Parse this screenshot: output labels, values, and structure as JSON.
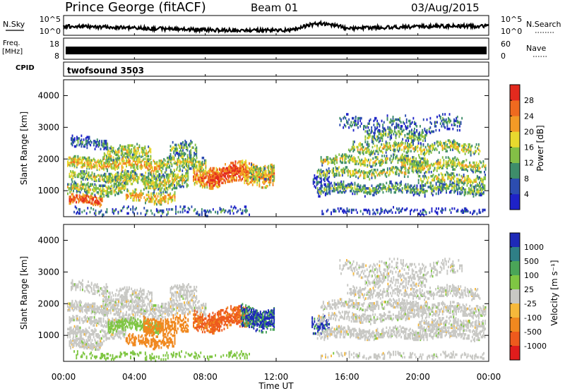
{
  "header": {
    "station": "Prince George (fitACF)",
    "beam": "Beam 01",
    "date": "03/Aug/2015"
  },
  "noise_panel": {
    "left_label": "N.Sky",
    "right_label": "N.Search",
    "left_ticks": [
      "10^5",
      "10^0"
    ],
    "right_ticks": [
      "10^5",
      "10^0"
    ]
  },
  "freq_panel": {
    "left_label_1": "Freq.",
    "left_label_2": "[MHz]",
    "right_label": "Nave",
    "left_ticks": [
      "18",
      "8"
    ],
    "right_ticks": [
      "60",
      "0"
    ]
  },
  "cpid_panel": {
    "label": "CPID",
    "value": "twofsound 3503"
  },
  "chart_data": [
    {
      "type": "heatmap",
      "name": "power",
      "ylabel": "Slant Range [km]",
      "ylim": [
        180,
        4500
      ],
      "yticks": [
        "1000",
        "2000",
        "3000",
        "4000"
      ],
      "colorbar": {
        "label": "Power [dB]",
        "ticks": [
          "4",
          "8",
          "12",
          "16",
          "20",
          "24",
          "28"
        ],
        "colors": [
          "#1e22c8",
          "#2c4db0",
          "#3e8d6a",
          "#83bf46",
          "#e8d92e",
          "#f39a26",
          "#ef6a1f",
          "#e32a1e"
        ]
      }
    },
    {
      "type": "heatmap",
      "name": "velocity",
      "ylabel": "Slant Range [km]",
      "ylim": [
        180,
        4500
      ],
      "yticks": [
        "1000",
        "2000",
        "3000",
        "4000"
      ],
      "colorbar": {
        "label": "Velocity [m s⁻¹]",
        "ticks": [
          "1000",
          "500",
          "100",
          "25",
          "-25",
          "-100",
          "-500",
          "-1000"
        ],
        "colors": [
          "#1e2ab8",
          "#2f7f86",
          "#4aa558",
          "#7fc643",
          "#c8c8c4",
          "#f6b93b",
          "#f0881f",
          "#ee5a1d",
          "#e01c1c"
        ]
      }
    }
  ],
  "x_axis": {
    "label": "Time UT",
    "ticks": [
      "00:00",
      "04:00",
      "08:00",
      "12:00",
      "16:00",
      "20:00",
      "00:00"
    ]
  }
}
